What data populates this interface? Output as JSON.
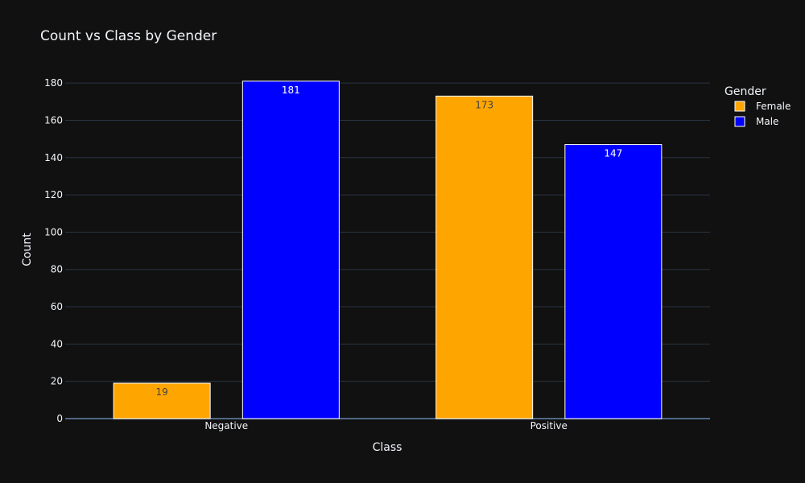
{
  "chart_data": {
    "type": "bar",
    "title": "Count vs Class by Gender",
    "xlabel": "Class",
    "ylabel": "Count",
    "categories": [
      "Negative",
      "Positive"
    ],
    "ylim": [
      0,
      190
    ],
    "yticks": [
      0,
      20,
      40,
      60,
      80,
      100,
      120,
      140,
      160,
      180
    ],
    "grid": true,
    "legend": {
      "title": "Gender",
      "placement": "top-right"
    },
    "series": [
      {
        "name": "Female",
        "values": [
          19,
          173
        ],
        "color": "#ffa500",
        "label_color": "#444444"
      },
      {
        "name": "Male",
        "values": [
          181,
          147
        ],
        "color": "#0000ff",
        "label_color": "#ffffff"
      }
    ]
  },
  "colors": {
    "background": "#111111",
    "grid": "#283442",
    "zeroline": "#506784",
    "bar_outline": "#ffffff",
    "text": "#f2f5fa"
  }
}
